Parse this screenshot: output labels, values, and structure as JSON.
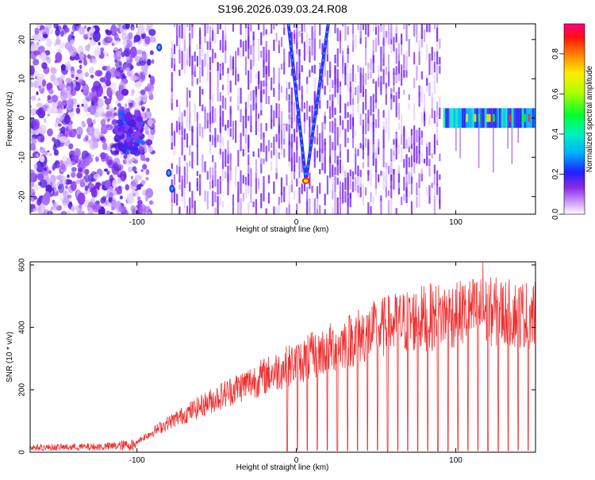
{
  "title": "S196.2026.039.03.24.R08",
  "chart_data": [
    {
      "type": "heatmap",
      "title": "S196.2026.039.03.24.R08",
      "xlabel": "Height of straight line (km)",
      "ylabel": "Frequency (Hz)",
      "xlim": [
        -167,
        150
      ],
      "ylim": [
        -24.5,
        24
      ],
      "xticks": [
        -100,
        0,
        100
      ],
      "yticks": [
        -20,
        -10,
        0,
        10,
        20
      ],
      "colorbar": {
        "label": "Normalized spectral amplitude",
        "range": [
          0.0,
          0.95
        ],
        "ticks": [
          0.0,
          0.2,
          0.4,
          0.6,
          0.8
        ],
        "tick_labels": [
          "0.0",
          "0.2",
          "0.4",
          "0.6",
          "0.8"
        ],
        "colormap": [
          "#ffffff",
          "#c080ff",
          "#7f2bff",
          "#3a2bff",
          "#00c8ff",
          "#00ff80",
          "#ffff00",
          "#ff8000",
          "#ff0000",
          "#ff0080"
        ]
      },
      "features": {
        "v_dip": {
          "apex_x": 6,
          "apex_y": -16,
          "left_top": [
            -5,
            24
          ],
          "right_top": [
            20,
            24
          ]
        },
        "stripe_band_x": [
          -85,
          90
        ],
        "noise_band_x": [
          -167,
          -90
        ],
        "cluster_center": [
          -105,
          -4
        ],
        "gap_x": [
          -88,
          -80
        ],
        "horizontal_band": {
          "x": [
            92,
            150
          ],
          "y": 0
        },
        "dots": [
          {
            "x": -86,
            "y": 18
          },
          {
            "x": -80,
            "y": -14
          },
          {
            "x": -78,
            "y": -18
          }
        ]
      }
    },
    {
      "type": "line",
      "xlabel": "Height of straight line (km)",
      "ylabel": "SNR (10 * v/v)",
      "xlim": [
        -167,
        150
      ],
      "ylim": [
        0,
        610
      ],
      "xticks": [
        -100,
        0,
        100
      ],
      "yticks": [
        0,
        200,
        400,
        600
      ],
      "color": "#ee3030",
      "envelope": [
        {
          "x": -167,
          "y": 20
        },
        {
          "x": -120,
          "y": 25
        },
        {
          "x": -100,
          "y": 40
        },
        {
          "x": -80,
          "y": 110
        },
        {
          "x": -60,
          "y": 170
        },
        {
          "x": -40,
          "y": 230
        },
        {
          "x": -20,
          "y": 280
        },
        {
          "x": 0,
          "y": 330
        },
        {
          "x": 20,
          "y": 380
        },
        {
          "x": 40,
          "y": 430
        },
        {
          "x": 60,
          "y": 470
        },
        {
          "x": 80,
          "y": 495
        },
        {
          "x": 100,
          "y": 510
        },
        {
          "x": 115,
          "y": 520
        },
        {
          "x": 130,
          "y": 515
        },
        {
          "x": 150,
          "y": 505
        }
      ],
      "dropouts_start_x": -6,
      "dropout_spacing": 6.3,
      "peak": {
        "x": 117,
        "y": 608
      }
    }
  ]
}
